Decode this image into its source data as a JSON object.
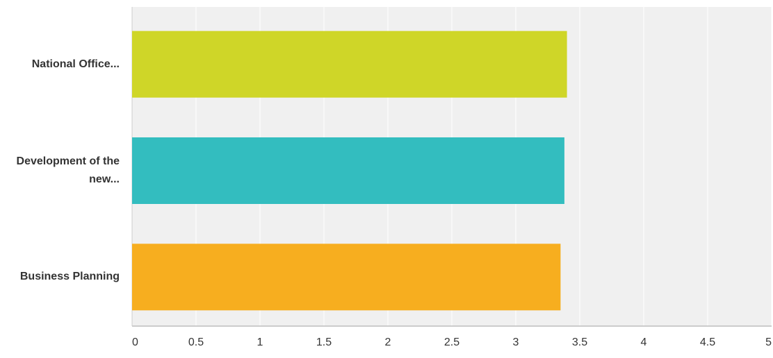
{
  "chart_data": {
    "type": "bar",
    "orientation": "horizontal",
    "categories": [
      "National Office...",
      "Development of the new...",
      "Business Planning"
    ],
    "values": [
      3.4,
      3.38,
      3.35
    ],
    "colors": [
      "#cfd628",
      "#33bdbf",
      "#f7ae1f"
    ],
    "xlim": [
      0,
      5
    ],
    "xticks": [
      0,
      0.5,
      1,
      1.5,
      2,
      2.5,
      3,
      3.5,
      4,
      4.5,
      5
    ],
    "grid": true
  }
}
